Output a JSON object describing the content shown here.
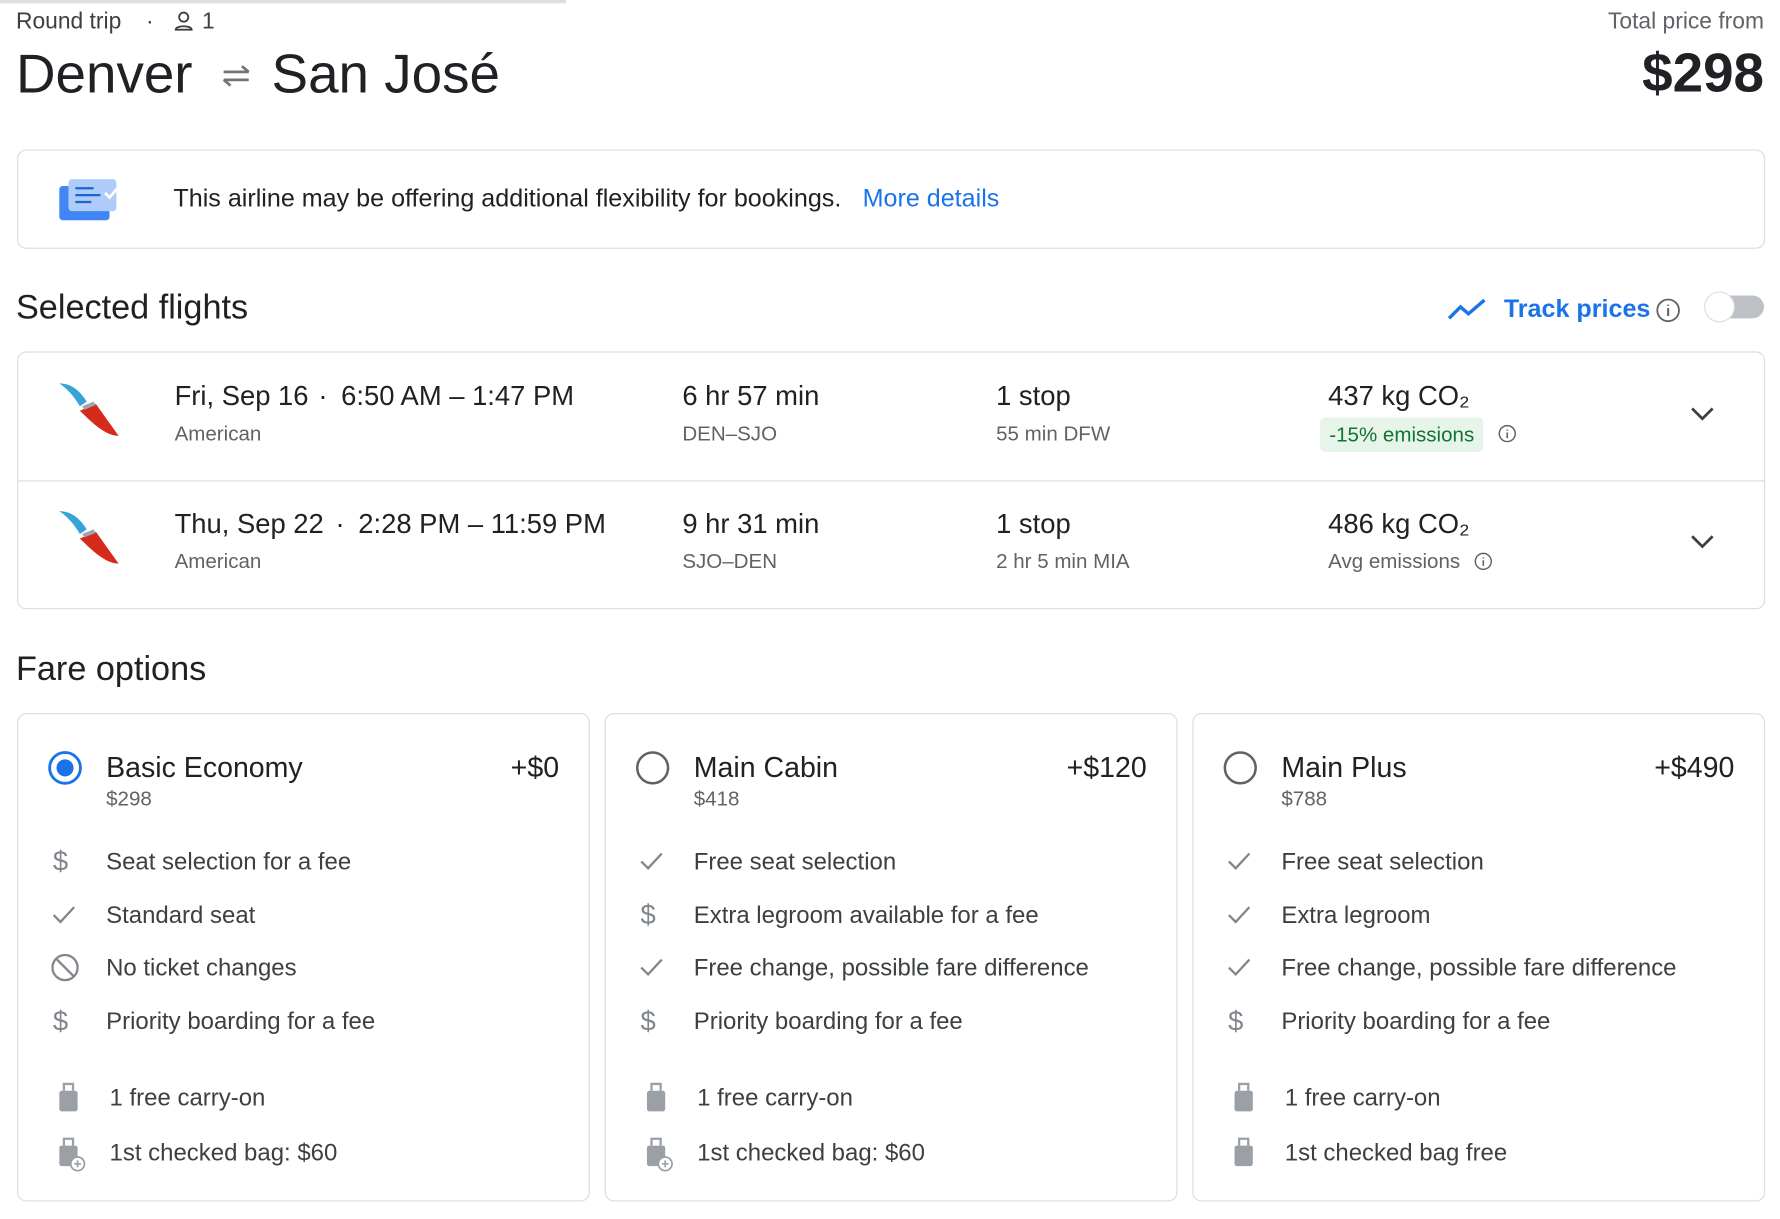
{
  "header": {
    "trip_type": "Round trip",
    "passengers": "1",
    "origin": "Denver",
    "destination": "San José",
    "price_label": "Total price from",
    "price": "$298"
  },
  "notice": {
    "text": "This airline may be offering additional flexibility for bookings.",
    "link": "More details"
  },
  "selected_flights": {
    "title": "Selected flights",
    "track_prices": "Track prices",
    "flights": [
      {
        "date": "Fri, Sep 16",
        "times": "6:50 AM – 1:47 PM",
        "airline": "American",
        "duration": "6 hr 57 min",
        "route": "DEN–SJO",
        "stops": "1 stop",
        "layover": "55 min DFW",
        "emissions": "437 kg CO₂",
        "emissions_note": "-15% emissions"
      },
      {
        "date": "Thu, Sep 22",
        "times": "2:28 PM – 11:59 PM",
        "airline": "American",
        "duration": "9 hr 31 min",
        "route": "SJO–DEN",
        "stops": "1 stop",
        "layover": "2 hr 5 min MIA",
        "emissions": "486 kg CO₂",
        "emissions_note": "Avg emissions"
      }
    ]
  },
  "fare_options": {
    "title": "Fare options",
    "options": [
      {
        "name": "Basic Economy",
        "price": "$298",
        "delta": "+$0",
        "features": [
          "Seat selection for a fee",
          "Standard seat",
          "No ticket changes",
          "Priority boarding for a fee"
        ],
        "bags": [
          "1 free carry-on",
          "1st checked bag: $60"
        ]
      },
      {
        "name": "Main Cabin",
        "price": "$418",
        "delta": "+$120",
        "features": [
          "Free seat selection",
          "Extra legroom available for a fee",
          "Free change, possible fare difference",
          "Priority boarding for a fee"
        ],
        "bags": [
          "1 free carry-on",
          "1st checked bag: $60"
        ]
      },
      {
        "name": "Main Plus",
        "price": "$788",
        "delta": "+$490",
        "features": [
          "Free seat selection",
          "Extra legroom",
          "Free change, possible fare difference",
          "Priority boarding for a fee"
        ],
        "bags": [
          "1 free carry-on",
          "1st checked bag free"
        ]
      }
    ]
  }
}
